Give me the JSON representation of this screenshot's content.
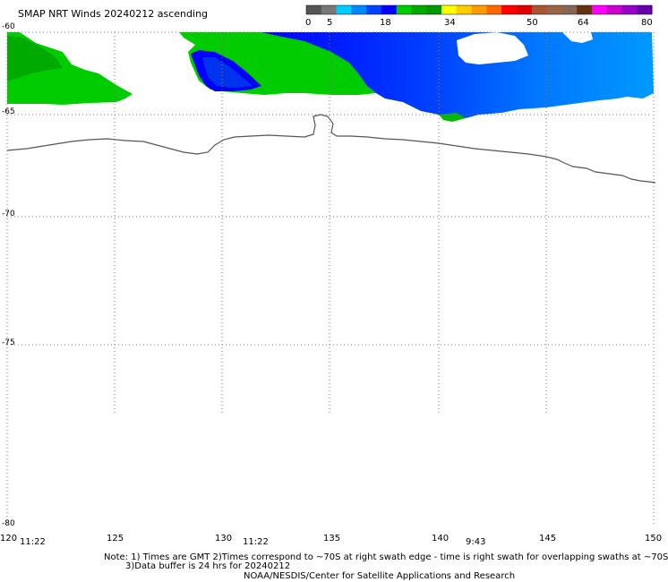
{
  "title": "SMAP NRT Winds 20240212 ascending",
  "colorbar": {
    "labels": [
      "0",
      "5",
      "18",
      "34",
      "50",
      "64",
      "80"
    ],
    "colors": [
      "#555555",
      "#777777",
      "#00ccff",
      "#0088ff",
      "#0044ff",
      "#0000ff",
      "#00cc00",
      "#00aa00",
      "#009900",
      "#ffff00",
      "#ffcc00",
      "#ff9900",
      "#ff6600",
      "#ff0000",
      "#dd0000",
      "#aa5533",
      "#996644",
      "#886655",
      "#663311",
      "#ff00ff",
      "#cc00cc",
      "#9900cc",
      "#6600aa"
    ]
  },
  "latitude_labels": [
    "-60",
    "-65",
    "-70",
    "-75",
    "-80"
  ],
  "longitude_labels": [
    "120",
    "125",
    "130",
    "135",
    "140",
    "145",
    "150"
  ],
  "time_labels": [
    "11:22",
    "11:22",
    "9:43"
  ],
  "notes": {
    "line1": "Note: 1) Times are GMT 2)Times correspond to ~70S at right swath edge - time is right swath for overlapping swaths at ~70S",
    "line2": "3)Data buffer is 24 hrs for 20240212",
    "credit": "NOAA/NESDIS/Center for Satellite Applications and Research"
  },
  "map_colors": {
    "green_dark": "#009900",
    "green": "#00cc00",
    "blue_dark": "#0000ff",
    "blue": "#0066ff",
    "blue_light": "#00aaff",
    "coastline": "#555555",
    "grid": "#777777"
  }
}
